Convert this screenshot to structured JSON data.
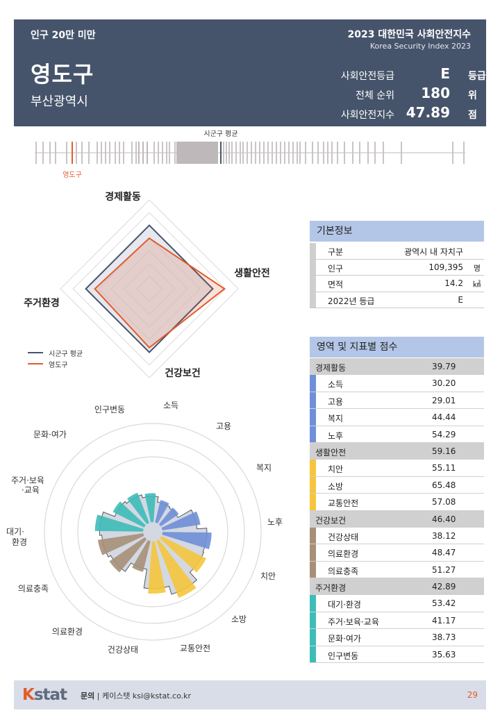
{
  "header": {
    "category": "인구 20만 미만",
    "region": "영도구",
    "city": "부산광역시",
    "title": "2023 대한민국 사회안전지수",
    "subtitle": "Korea Security Index 2023",
    "rows": [
      {
        "label": "사회안전등급",
        "value": "E",
        "unit": "등급"
      },
      {
        "label": "전체 순위",
        "value": "180",
        "unit": "위"
      },
      {
        "label": "사회안전지수",
        "value": "47.89",
        "unit": "점"
      }
    ]
  },
  "distribution": {
    "avg_label": "시군구 평균",
    "region_label": "영도구"
  },
  "chart_data": [
    {
      "type": "radar",
      "axes": [
        "경제활동",
        "생활안전",
        "건강보건",
        "주거환경"
      ],
      "series": [
        {
          "name": "시군구 평균",
          "values": [
            50,
            50,
            50,
            50
          ],
          "color": "#46546b"
        },
        {
          "name": "영도구",
          "values": [
            39.79,
            59.16,
            46.4,
            42.89
          ],
          "color": "#e25b2b"
        }
      ],
      "range": [
        0,
        70
      ]
    },
    {
      "type": "polar-bar",
      "categories": [
        "소득",
        "고용",
        "복지",
        "노후",
        "치안",
        "소방",
        "교통안전",
        "건강상태",
        "의료환경",
        "의료충족",
        "대기·환경",
        "주거·보육·교육",
        "문화·여가",
        "인구변동"
      ],
      "values": [
        30.2,
        29.01,
        44.44,
        54.29,
        55.11,
        65.48,
        57.08,
        38.12,
        48.47,
        51.27,
        53.42,
        41.17,
        38.73,
        35.63
      ],
      "range": [
        0,
        100
      ]
    }
  ],
  "basic_info": {
    "title": "기본정보",
    "rows": [
      {
        "key": "구분",
        "value": "광역시 내 자치구",
        "unit": ""
      },
      {
        "key": "인구",
        "value": "109,395",
        "unit": "명"
      },
      {
        "key": "면적",
        "value": "14.2",
        "unit": "㎢"
      },
      {
        "key": "2022년 등급",
        "value": "E",
        "unit": ""
      }
    ]
  },
  "scores": {
    "title": "영역 및 지표별 점수",
    "domains": [
      {
        "name": "경제활동",
        "score": "39.79",
        "color": "#6f8fd8",
        "items": [
          {
            "name": "소득",
            "score": "30.20"
          },
          {
            "name": "고용",
            "score": "29.01"
          },
          {
            "name": "복지",
            "score": "44.44"
          },
          {
            "name": "노후",
            "score": "54.29"
          }
        ]
      },
      {
        "name": "생활안전",
        "score": "59.16",
        "color": "#f4c63d",
        "items": [
          {
            "name": "치안",
            "score": "55.11"
          },
          {
            "name": "소방",
            "score": "65.48"
          },
          {
            "name": "교통안전",
            "score": "57.08"
          }
        ]
      },
      {
        "name": "건강보건",
        "score": "46.40",
        "color": "#a69078",
        "items": [
          {
            "name": "건강상태",
            "score": "38.12"
          },
          {
            "name": "의료환경",
            "score": "48.47"
          },
          {
            "name": "의료충족",
            "score": "51.27"
          }
        ]
      },
      {
        "name": "주거환경",
        "score": "42.89",
        "color": "#3dbdb9",
        "items": [
          {
            "name": "대기·환경",
            "score": "53.42"
          },
          {
            "name": "주거·보육·교육",
            "score": "41.17"
          },
          {
            "name": "문화·여가",
            "score": "38.73"
          },
          {
            "name": "인구변동",
            "score": "35.63"
          }
        ]
      }
    ]
  },
  "footer": {
    "logo_k": "K",
    "logo_rest": "stat",
    "contact_label": "문의",
    "contact_text": "| 케이스탯 ksi@kstat.co.kr",
    "page": "29"
  }
}
